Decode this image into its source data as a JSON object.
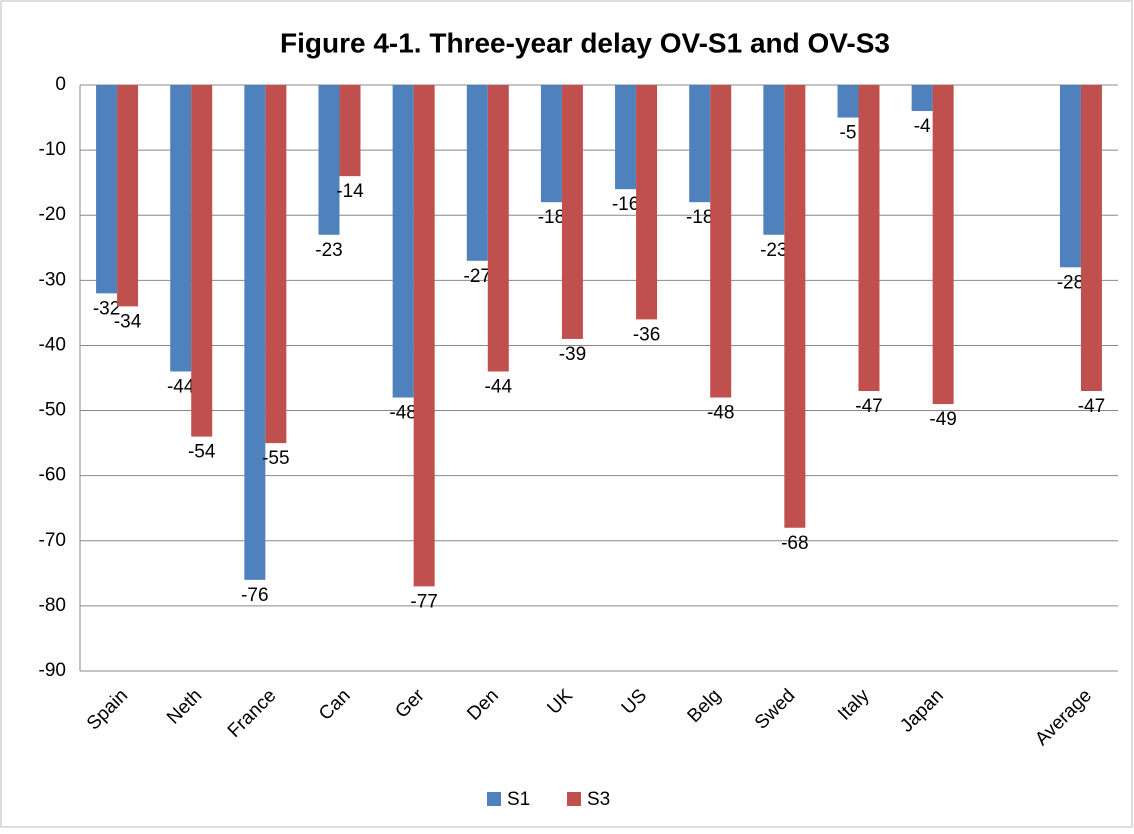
{
  "chart_data": {
    "type": "bar",
    "title": "Figure 4-1. Three-year delay OV-S1 and OV-S3",
    "categories": [
      "Spain",
      "Neth",
      "France",
      "Can",
      "Ger",
      "Den",
      "UK",
      "US",
      "Belg",
      "Swed",
      "Italy",
      "Japan",
      null,
      "Average"
    ],
    "series": [
      {
        "name": "S1",
        "color": "#4f81bd",
        "values": [
          -32,
          -44,
          -76,
          -23,
          -48,
          -27,
          -18,
          -16,
          -18,
          -23,
          -5,
          -4,
          null,
          -28
        ]
      },
      {
        "name": "S3",
        "color": "#c0504d",
        "values": [
          -34,
          -54,
          -55,
          -14,
          -77,
          -44,
          -39,
          -36,
          -48,
          -68,
          -47,
          -49,
          null,
          -47
        ]
      }
    ],
    "ylim": [
      -90,
      0
    ],
    "yticks": [
      0,
      -10,
      -20,
      -30,
      -40,
      -50,
      -60,
      -70,
      -80,
      -90
    ],
    "grid": true,
    "legend": "bottom"
  }
}
